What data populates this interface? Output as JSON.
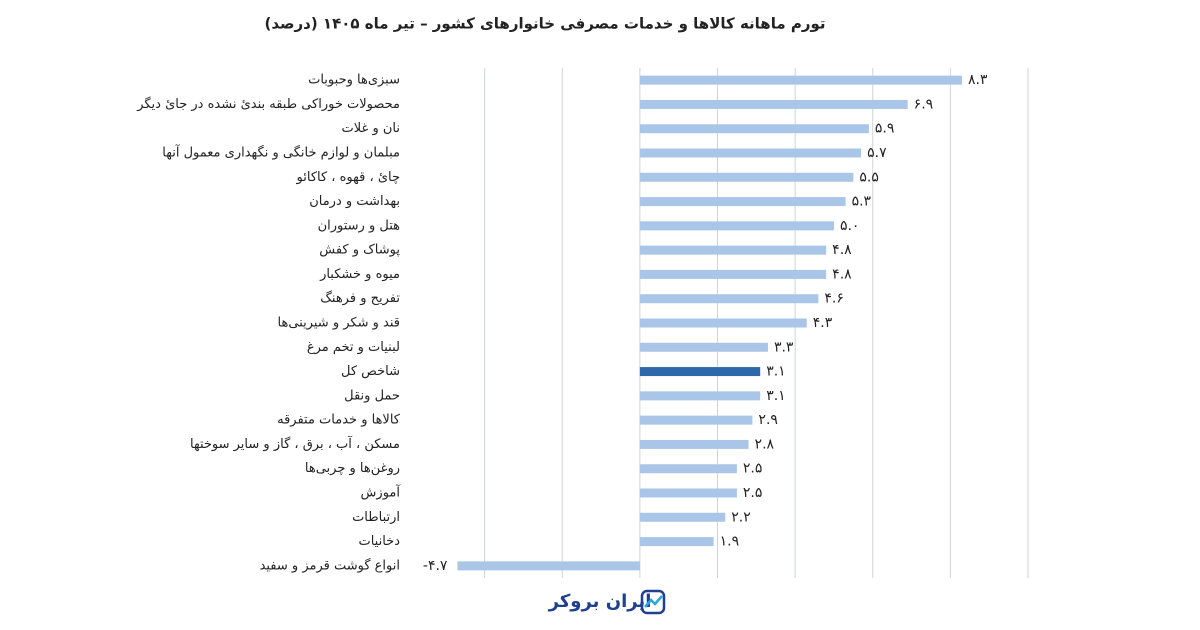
{
  "chart_data": {
    "type": "hbar",
    "title": "تورم ماهانه کالاها و خدمات مصرفی خانوارهای کشور – تیر ماه ۱۴۰۵ (درصد)",
    "categories": [
      "سبزی‌ها وحبوبات",
      "محصولات خوراکی طبقه بندئ نشده در جائ دیگر",
      "نان و غلات",
      "مبلمان و لوازم خانگی و نگهداری معمول آنها",
      "چائ ، قهوه ، کاکائو",
      "بهداشت و درمان",
      "هتل و رستوران",
      "پوشاک و کفش",
      "میوه و خشکبار",
      "تفریح و فرهنگ",
      "قند و شکر و شیرینی‌ها",
      "لبنیات و تخم مرغ",
      "شاخص کل",
      "حمل ونقل",
      "کالاها و خدمات متفرقه",
      "مسکن ، آب ، برق ، گاز و سایر سوختها",
      "روغن‌ها و چربی‌ها",
      "آموزش",
      "ارتباطات",
      "دخانیات",
      "انواع گوشت قرمز و سفید"
    ],
    "values": [
      8.3,
      6.9,
      5.9,
      5.7,
      5.5,
      5.3,
      5.0,
      4.8,
      4.8,
      4.6,
      4.3,
      3.3,
      3.1,
      3.1,
      2.9,
      2.8,
      2.5,
      2.5,
      2.2,
      1.9,
      -4.7
    ],
    "value_labels": [
      "۸.۳",
      "۶.۹",
      "۵.۹",
      "۵.۷",
      "۵.۵",
      "۵.۳",
      "۵.۰",
      "۴.۸",
      "۴.۸",
      "۴.۶",
      "۴.۳",
      "۳.۳",
      "۳.۱",
      "۳.۱",
      "۲.۹",
      "۲.۸",
      "۲.۵",
      "۲.۵",
      "۲.۲",
      "۱.۹",
      "-۴.۷"
    ],
    "colors": [
      "#a9c5e8",
      "#a9c5e8",
      "#a9c5e8",
      "#a9c5e8",
      "#a9c5e8",
      "#a9c5e8",
      "#a9c5e8",
      "#a9c5e8",
      "#a9c5e8",
      "#a9c5e8",
      "#a9c5e8",
      "#a9c5e8",
      "#2e68aa",
      "#a9c5e8",
      "#a9c5e8",
      "#a9c5e8",
      "#a9c5e8",
      "#a9c5e8",
      "#a9c5e8",
      "#a9c5e8",
      "#a9c5e8"
    ],
    "xlim": [
      -6,
      10
    ],
    "xticks": [
      -4,
      -2,
      0,
      2,
      4,
      6,
      8,
      10
    ],
    "grid": true,
    "brand": "ایران بروکر"
  }
}
